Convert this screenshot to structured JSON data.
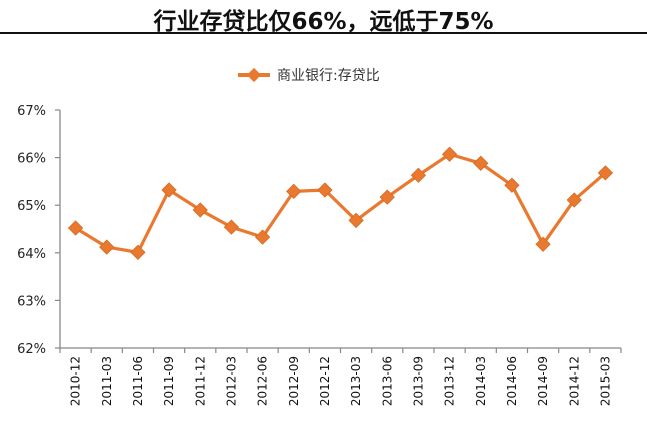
{
  "header": {
    "title": "行业存贷比仅66%，远低于75%"
  },
  "chart_data": {
    "type": "line",
    "title": "行业存贷比仅66%，远低于75%",
    "xlabel": "",
    "ylabel": "",
    "ylim": [
      62,
      67
    ],
    "yticks": [
      "62%",
      "63%",
      "64%",
      "65%",
      "66%",
      "67%"
    ],
    "grid": false,
    "legend_position": "top",
    "categories": [
      "2010-12",
      "2011-03",
      "2011-06",
      "2011-09",
      "2011-12",
      "2012-03",
      "2012-06",
      "2012-09",
      "2012-12",
      "2013-03",
      "2013-06",
      "2013-09",
      "2013-12",
      "2014-03",
      "2014-06",
      "2014-09",
      "2014-12",
      "2015-03"
    ],
    "series": [
      {
        "name": "商业银行:存贷比",
        "color": "#E8792F",
        "marker": "diamond",
        "values": [
          64.52,
          64.12,
          64.01,
          65.32,
          64.9,
          64.54,
          64.33,
          65.29,
          65.32,
          64.68,
          65.17,
          65.63,
          66.07,
          65.88,
          65.42,
          64.18,
          65.11,
          65.68
        ]
      }
    ]
  }
}
